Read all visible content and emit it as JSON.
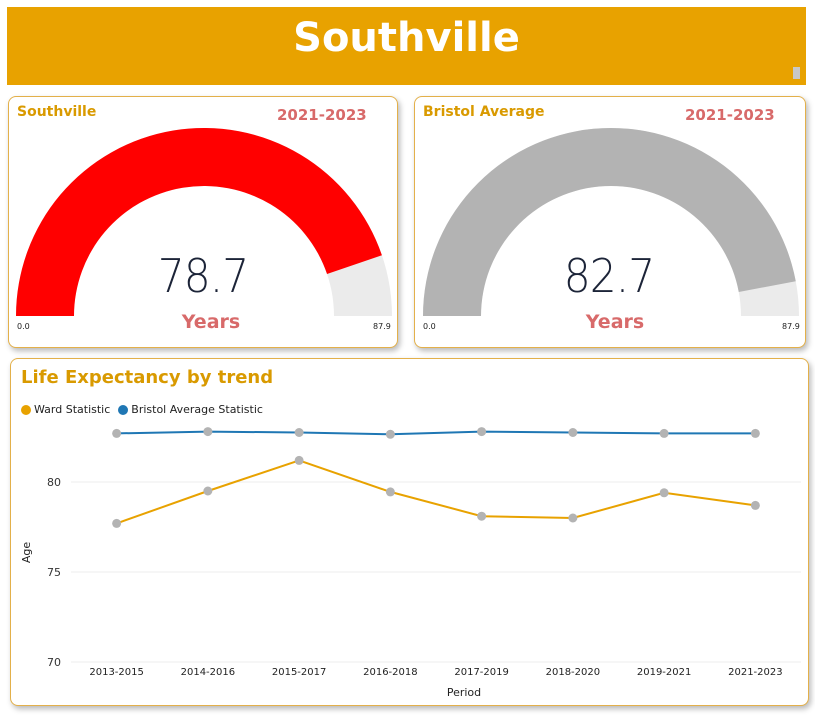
{
  "header": {
    "title": "Southville"
  },
  "gauges": [
    {
      "title": "Southville",
      "period": "2021-2023",
      "value": 78.7,
      "value_label": "78.7",
      "unit": "Years",
      "min": 0,
      "max": 87.9,
      "min_label": "0.0",
      "max_label": "87.9",
      "fill_color": "#ff0000",
      "track_color": "#ebebeb"
    },
    {
      "title": "Bristol Average",
      "period": "2021-2023",
      "value": 82.7,
      "value_label": "82.7",
      "unit": "Years",
      "min": 0,
      "max": 87.9,
      "min_label": "0.0",
      "max_label": "87.9",
      "fill_color": "#b3b3b3",
      "track_color": "#ebebeb"
    }
  ],
  "chart_data": {
    "type": "line",
    "title": "Life Expectancy by trend",
    "xlabel": "Period",
    "ylabel": "Age",
    "categories": [
      "2013-2015",
      "2014-2016",
      "2015-2017",
      "2016-2018",
      "2017-2019",
      "2018-2020",
      "2019-2021",
      "2021-2023"
    ],
    "series": [
      {
        "name": "Ward Statistic",
        "color": "#e8a200",
        "values": [
          77.7,
          79.5,
          81.2,
          79.45,
          78.1,
          78.0,
          79.4,
          78.7
        ]
      },
      {
        "name": "Bristol Average Statistic",
        "color": "#1f77b4",
        "values": [
          82.7,
          82.8,
          82.75,
          82.65,
          82.8,
          82.75,
          82.7,
          82.7
        ]
      }
    ],
    "yticks": [
      70,
      75,
      80
    ],
    "ylim": [
      70,
      83.5
    ],
    "grid": true,
    "legend": "top-left",
    "marker_color": "#b3b3b3"
  }
}
